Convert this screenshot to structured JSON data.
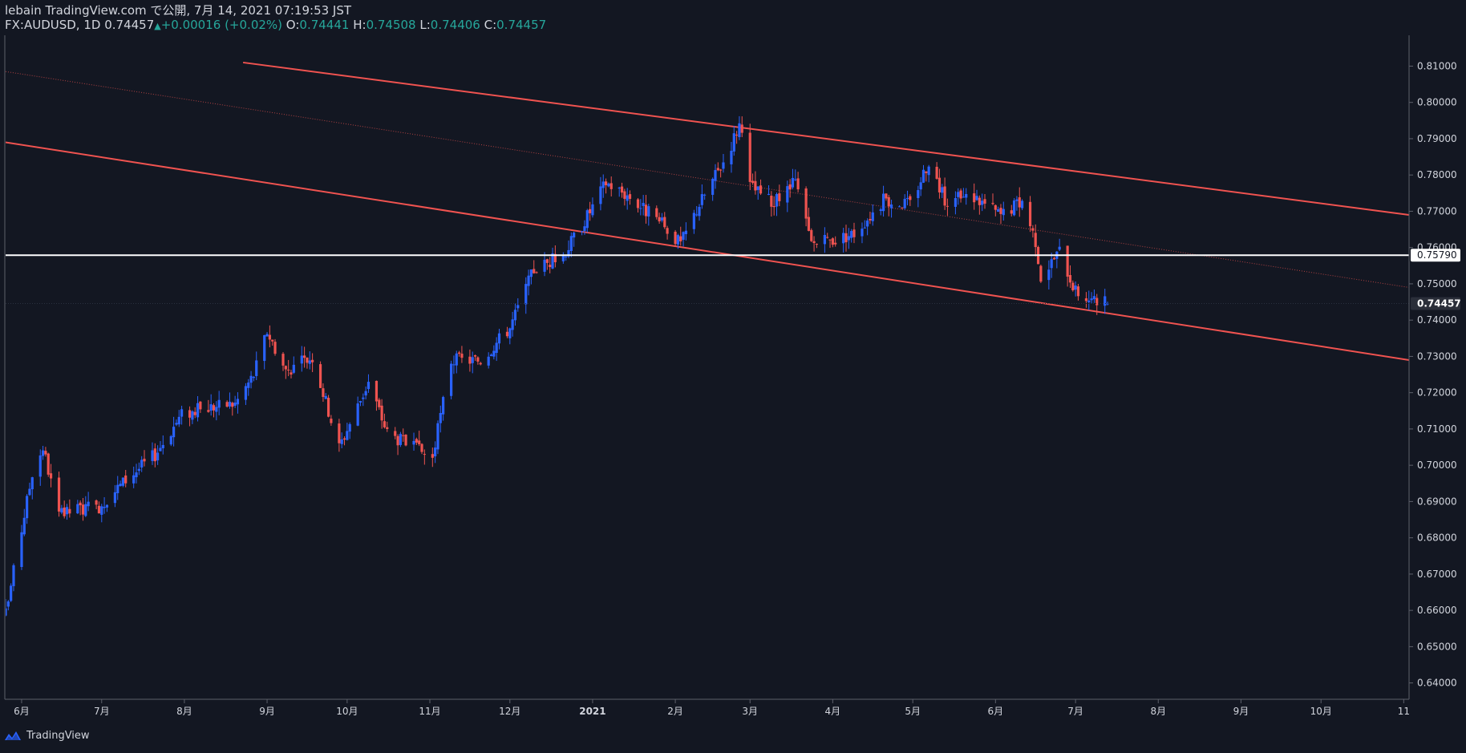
{
  "header": {
    "line1": "lebain TradingView.com で公開, 7月 14, 2021 07:19:53 JST",
    "symbol": "FX:AUDUSD, 1D",
    "last": "0.74457",
    "change_arrow": "▲",
    "change": "+0.00016 (+0.02%)",
    "o_label": "O:",
    "o_value": "0.74441",
    "h_label": "H:",
    "h_value": "0.74508",
    "l_label": "L:",
    "l_value": "0.74406",
    "c_label": "C:",
    "c_value": "0.74457"
  },
  "footer": {
    "brand": "TradingView",
    "logo_icon": "tradingview-logo-icon"
  },
  "colors": {
    "background": "#131722",
    "bull": "#2962ff",
    "bear": "#ef5350",
    "channel": "#f05350",
    "text": "#d1d4dc",
    "hline": "#ffffff",
    "last_label": "#2a2e39"
  },
  "chart_data": {
    "type": "candlestick",
    "title": "FX:AUDUSD, 1D",
    "ylim": [
      0.6355,
      0.8185
    ],
    "y_ticks": [
      0.64,
      0.65,
      0.66,
      0.67,
      0.68,
      0.69,
      0.7,
      0.71,
      0.72,
      0.73,
      0.74,
      0.75,
      0.76,
      0.77,
      0.78,
      0.79,
      0.8,
      0.81
    ],
    "y_tick_labels": [
      "0.64000",
      "0.65000",
      "0.66000",
      "0.67000",
      "0.68000",
      "0.69000",
      "0.70000",
      "0.71000",
      "0.72000",
      "0.73000",
      "0.74000",
      "0.75000",
      "0.76000",
      "0.77000",
      "0.78000",
      "0.79000",
      "0.80000",
      "0.81000"
    ],
    "x_tick_labels": [
      {
        "label": "6月",
        "date": "2020-06-01"
      },
      {
        "label": "7月",
        "date": "2020-07-01"
      },
      {
        "label": "8月",
        "date": "2020-08-01"
      },
      {
        "label": "9月",
        "date": "2020-09-01"
      },
      {
        "label": "10月",
        "date": "2020-10-01"
      },
      {
        "label": "11月",
        "date": "2020-11-01"
      },
      {
        "label": "12月",
        "date": "2020-12-01"
      },
      {
        "label": "2021",
        "date": "2021-01-01"
      },
      {
        "label": "2月",
        "date": "2021-02-01"
      },
      {
        "label": "3月",
        "date": "2021-03-01"
      },
      {
        "label": "4月",
        "date": "2021-04-01"
      },
      {
        "label": "5月",
        "date": "2021-05-01"
      },
      {
        "label": "6月",
        "date": "2021-06-01"
      },
      {
        "label": "7月",
        "date": "2021-07-01"
      },
      {
        "label": "8月",
        "date": "2021-08-01"
      },
      {
        "label": "9月",
        "date": "2021-09-01"
      },
      {
        "label": "10月",
        "date": "2021-10-01"
      },
      {
        "label": "11",
        "date": "2021-11-01"
      }
    ],
    "x_start": "2020-05-26",
    "x_end": "2021-11-03",
    "close_path": [
      [
        "2020-05-26",
        0.659
      ],
      [
        "2020-06-05",
        0.698
      ],
      [
        "2020-06-09",
        0.705
      ],
      [
        "2020-06-15",
        0.686
      ],
      [
        "2020-06-22",
        0.688
      ],
      [
        "2020-06-29",
        0.688
      ],
      [
        "2020-07-10",
        0.696
      ],
      [
        "2020-07-21",
        0.703
      ],
      [
        "2020-07-31",
        0.714
      ],
      [
        "2020-08-10",
        0.716
      ],
      [
        "2020-08-20",
        0.717
      ],
      [
        "2020-08-27",
        0.725
      ],
      [
        "2020-09-01",
        0.737
      ],
      [
        "2020-09-08",
        0.726
      ],
      [
        "2020-09-18",
        0.73
      ],
      [
        "2020-09-28",
        0.705
      ],
      [
        "2020-10-09",
        0.723
      ],
      [
        "2020-10-16",
        0.709
      ],
      [
        "2020-10-28",
        0.704
      ],
      [
        "2020-11-02",
        0.702
      ],
      [
        "2020-11-09",
        0.729
      ],
      [
        "2020-11-20",
        0.729
      ],
      [
        "2020-12-01",
        0.738
      ],
      [
        "2020-12-10",
        0.754
      ],
      [
        "2020-12-21",
        0.758
      ],
      [
        "2020-12-31",
        0.77
      ],
      [
        "2021-01-06",
        0.778
      ],
      [
        "2021-01-15",
        0.774
      ],
      [
        "2021-01-29",
        0.765
      ],
      [
        "2021-02-03",
        0.761
      ],
      [
        "2021-02-10",
        0.772
      ],
      [
        "2021-02-20",
        0.785
      ],
      [
        "2021-02-25",
        0.794
      ],
      [
        "2021-03-01",
        0.777
      ],
      [
        "2021-03-10",
        0.772
      ],
      [
        "2021-03-18",
        0.778
      ],
      [
        "2021-03-24",
        0.761
      ],
      [
        "2021-04-01",
        0.762
      ],
      [
        "2021-04-09",
        0.764
      ],
      [
        "2021-04-20",
        0.773
      ],
      [
        "2021-04-30",
        0.772
      ],
      [
        "2021-05-07",
        0.784
      ],
      [
        "2021-05-13",
        0.773
      ],
      [
        "2021-05-24",
        0.774
      ],
      [
        "2021-06-03",
        0.769
      ],
      [
        "2021-06-11",
        0.773
      ],
      [
        "2021-06-16",
        0.762
      ],
      [
        "2021-06-18",
        0.752
      ],
      [
        "2021-06-25",
        0.759
      ],
      [
        "2021-07-01",
        0.748
      ],
      [
        "2021-07-08",
        0.745
      ],
      [
        "2021-07-13",
        0.74457
      ]
    ],
    "last_candle": {
      "date": "2021-07-13",
      "open": 0.74441,
      "high": 0.74508,
      "low": 0.74406,
      "close": 0.74457
    },
    "last_price_label": "0.74457",
    "horizontal_line": {
      "value": 0.7579,
      "label": "0.75790"
    },
    "channel": {
      "upper": {
        "start": [
          "2020-08-23",
          0.811
        ],
        "end": [
          "2021-11-03",
          0.769
        ]
      },
      "lower": {
        "start": [
          "2020-05-26",
          0.789
        ],
        "end": [
          "2021-11-03",
          0.729
        ]
      },
      "mid_dotted": {
        "start": [
          "2020-05-26",
          0.8085
        ],
        "end": [
          "2021-11-03",
          0.749
        ]
      }
    }
  }
}
